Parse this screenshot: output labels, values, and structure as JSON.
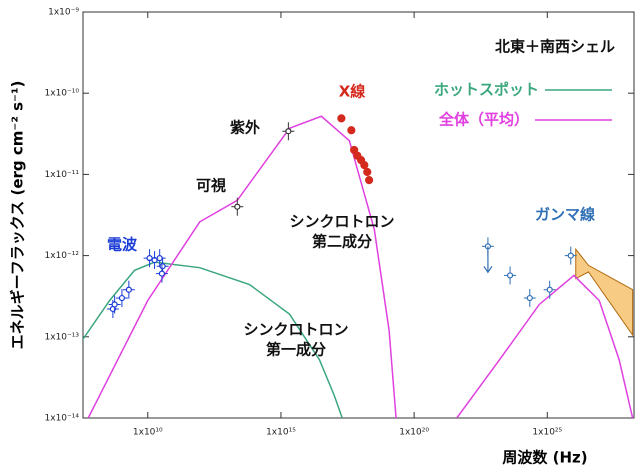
{
  "chart_data": {
    "type": "line",
    "title": "北東＋南西シェル",
    "x_label": "周波数 (Hz)",
    "y_label": "エネルギーフラックス (erg cm⁻² s⁻¹)",
    "log_x": true,
    "log_y": true,
    "xlim": [
      37000000.0,
      1.8e+28
    ],
    "ylim": [
      1e-14,
      1e-09
    ],
    "xticks": [
      {
        "value": 10000000000.0,
        "label": "1x10¹⁰"
      },
      {
        "value": 1000000000000000.0,
        "label": "1x10¹⁵"
      },
      {
        "value": 1e+20,
        "label": "1x10²⁰"
      },
      {
        "value": 1e+25,
        "label": "1x10²⁵"
      }
    ],
    "yticks": [
      {
        "value": 1e-14,
        "label": "1x10⁻¹⁴"
      },
      {
        "value": 1e-13,
        "label": "1x10⁻¹³"
      },
      {
        "value": 1e-12,
        "label": "1x10⁻¹²"
      },
      {
        "value": 1e-11,
        "label": "1x10⁻¹¹"
      },
      {
        "value": 1e-10,
        "label": "1x10⁻¹⁰"
      },
      {
        "value": 1e-09,
        "label": "1x10⁻⁹"
      }
    ],
    "series": [
      {
        "name": "ホットスポット",
        "color": "#3aa77d",
        "x": [
          35000000.0,
          370000000.0,
          3200000000.0,
          18000000000.0,
          890000000000.0,
          66000000000000.0,
          2100000000000000.0,
          2.8e+16,
          1e+17,
          2e+17
        ],
        "values": [
          9.1e-14,
          2.8e-13,
          6.6e-13,
          8.3e-13,
          7.1e-13,
          4.4e-13,
          1.9e-13,
          5.2e-14,
          1.9e-14,
          1e-14
        ]
      },
      {
        "name": "全体（平均）",
        "color": "#e040e0",
        "x": [
          58000000.0,
          10000000000.0,
          890000000000.0,
          23000000000000.0,
          2100000000000000.0,
          3.3e+16,
          3.7e+17,
          3.2e+18,
          1.15e+19,
          2.1e+19,
          null,
          4e+21,
          1.6e+23,
          5e+24,
          1e+26,
          8.9e+26,
          5e+27,
          1.6e+28
        ],
        "values": [
          1e-14,
          2.8e-13,
          2.6e-12,
          4.8e-12,
          3.7e-11,
          5.2e-11,
          2.6e-11,
          2.1e-12,
          1.2e-13,
          1e-14,
          null,
          1e-14,
          5.2e-14,
          2.5e-13,
          5.7e-13,
          2.8e-13,
          5.2e-14,
          1e-14
        ]
      }
    ],
    "points": [
      {
        "color": "#1a3bd6",
        "x": [
          490000000.0,
          570000000.0,
          1070000000.0,
          1950000000.0,
          11700000000.0,
          18000000000.0,
          28000000000.0,
          36000000000.0,
          34000000000.0
        ],
        "values": [
          2.2e-13,
          2.5e-13,
          3e-13,
          3.8e-13,
          9.3e-13,
          8.8e-13,
          9.3e-13,
          7.4e-13,
          6e-13
        ]
      },
      {
        "color": "#333333",
        "x": [
          23000000000000.0,
          1900000000000000.0
        ],
        "values": [
          4e-12,
          3.4e-11
        ]
      },
      {
        "color": "#d42a1e",
        "x": [
          1.86e+17,
          4.4e+17,
          5.6e+17,
          7.4e+17,
          1.02e+18,
          1.35e+18,
          1.74e+18,
          2.04e+18
        ],
        "values": [
          4.9e-11,
          3.5e-11,
          2e-11,
          1.7e-11,
          1.5e-11,
          1.3e-11,
          1.07e-11,
          8.5e-12
        ]
      },
      {
        "color": "#2f6fb5",
        "x": [
          5.9e+22,
          4e+23,
          2.2e+24,
          1.23e+25,
          7.6e+25
        ],
        "values": [
          1.3e-12,
          5.7e-13,
          3e-13,
          3.8e-13,
          1e-12
        ]
      }
    ],
    "band": {
      "color": "#f2a830",
      "x": [
        1.17e+26,
        3.5e+26,
        1.6e+28
      ],
      "lower": [
        5.2e-13,
        6.3e-13,
        1.05e-13
      ],
      "upper": [
        1.2e-12,
        7.6e-13,
        3.8e-13
      ]
    },
    "annotations": [
      {
        "color": "#d42a1e",
        "lines": [
          "X線"
        ]
      },
      {
        "color": "#111111",
        "lines": [
          "紫外"
        ]
      },
      {
        "color": "#111111",
        "lines": [
          "可視"
        ]
      },
      {
        "color": "#1a3bd6",
        "lines": [
          "電波"
        ]
      },
      {
        "color": "#111111",
        "lines": [
          "シンクロトロン",
          "第二成分"
        ]
      },
      {
        "color": "#111111",
        "lines": [
          "シンクロトロン",
          "第一成分"
        ]
      },
      {
        "color": "#2f6fb5",
        "lines": [
          "ガンマ線"
        ]
      }
    ]
  }
}
